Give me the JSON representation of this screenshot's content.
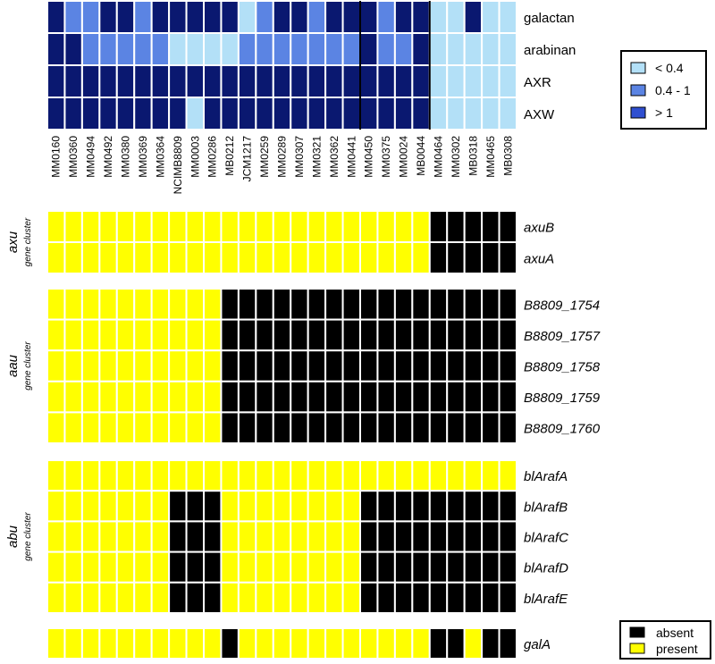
{
  "chart_data": {
    "type": "heatmap",
    "strains": [
      "MM0160",
      "MM0360",
      "MM0494",
      "MM0492",
      "MM0380",
      "MM0369",
      "MM0364",
      "NCIMB8809",
      "MM0003",
      "MM0286",
      "MB0212",
      "JCM1217",
      "MM0259",
      "MM0289",
      "MM0307",
      "MM0321",
      "MM0362",
      "MM0441",
      "MM0450",
      "MM0375",
      "MM0024",
      "MB0044",
      "MM0464",
      "MM0302",
      "MB0318",
      "MM0465",
      "MB0308"
    ],
    "growth": {
      "rows": [
        {
          "label": "galactan",
          "values": [
            ">1",
            "0.4-1",
            "0.4-1",
            ">1",
            ">1",
            "0.4-1",
            ">1",
            ">1",
            ">1",
            ">1",
            ">1",
            "<0.4",
            "0.4-1",
            ">1",
            ">1",
            "0.4-1",
            ">1",
            ">1",
            ">1",
            "0.4-1",
            ">1",
            ">1",
            "<0.4",
            "<0.4",
            ">1",
            "<0.4",
            "<0.4"
          ]
        },
        {
          "label": "arabinan",
          "values": [
            ">1",
            ">1",
            "0.4-1",
            "0.4-1",
            "0.4-1",
            "0.4-1",
            "0.4-1",
            "<0.4",
            "<0.4",
            "<0.4",
            "<0.4",
            "0.4-1",
            "0.4-1",
            "0.4-1",
            "0.4-1",
            "0.4-1",
            "0.4-1",
            "0.4-1",
            ">1",
            "0.4-1",
            "0.4-1",
            ">1",
            "<0.4",
            "<0.4",
            "<0.4",
            "<0.4",
            "<0.4"
          ]
        },
        {
          "label": "AXR",
          "values": [
            ">1",
            ">1",
            ">1",
            ">1",
            ">1",
            ">1",
            ">1",
            ">1",
            ">1",
            ">1",
            ">1",
            ">1",
            ">1",
            ">1",
            ">1",
            ">1",
            ">1",
            ">1",
            ">1",
            ">1",
            ">1",
            ">1",
            "<0.4",
            "<0.4",
            "<0.4",
            "<0.4",
            "<0.4"
          ]
        },
        {
          "label": "AXW",
          "values": [
            ">1",
            ">1",
            ">1",
            ">1",
            ">1",
            ">1",
            ">1",
            ">1",
            "<0.4",
            ">1",
            ">1",
            ">1",
            ">1",
            ">1",
            ">1",
            ">1",
            ">1",
            ">1",
            ">1",
            ">1",
            ">1",
            ">1",
            "<0.4",
            "<0.4",
            "<0.4",
            "<0.4",
            "<0.4"
          ]
        }
      ],
      "legend": [
        {
          "label": "< 0.4",
          "key": "<0.4",
          "color": "#b3e0f7"
        },
        {
          "label": "0.4 - 1",
          "key": "0.4-1",
          "color": "#5b84e3"
        },
        {
          "label": "> 1",
          "key": ">1",
          "color": "#2f4fd0"
        }
      ],
      "high_color": "#0a1870"
    },
    "gene_clusters": [
      {
        "name": "axu",
        "subtitle": "gene cluster",
        "genes": [
          {
            "label": "axuB",
            "present": "111111111111111111111100000"
          },
          {
            "label": "axuA",
            "present": "111111111111111111111100000"
          }
        ]
      },
      {
        "name": "aau",
        "subtitle": "gene cluster",
        "genes": [
          {
            "label": "B8809_1754",
            "present": "111111111100000000000000000"
          },
          {
            "label": "B8809_1757",
            "present": "111111111100000000000000000"
          },
          {
            "label": "B8809_1758",
            "present": "111111111100000000000000000"
          },
          {
            "label": "B8809_1759",
            "present": "111111111100000000000000000"
          },
          {
            "label": "B8809_1760",
            "present": "111111111100000000000000000"
          }
        ]
      },
      {
        "name": "abu",
        "subtitle": "gene cluster",
        "genes": [
          {
            "label": "blArafA",
            "present": "111111111111111111111111111"
          },
          {
            "label": "blArafB",
            "present": "111111100011111111000000000"
          },
          {
            "label": "blArafC",
            "present": "111111100011111111000000000"
          },
          {
            "label": "blArafD",
            "present": "111111100011111111000000000"
          },
          {
            "label": "blArafE",
            "present": "111111100011111111000000000"
          }
        ]
      },
      {
        "name": "",
        "subtitle": "",
        "genes": [
          {
            "label": "galA",
            "present": "111111111101111111111100100"
          }
        ]
      }
    ],
    "presence_legend": [
      {
        "label": "absent",
        "color": "#000000"
      },
      {
        "label": "present",
        "color": "#ffff00"
      }
    ]
  }
}
